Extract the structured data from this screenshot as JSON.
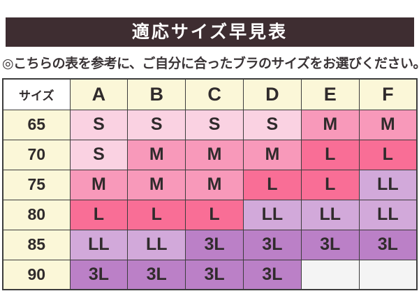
{
  "title": "適応サイズ早見表",
  "subtitle": "◎こちらの表を参考に、ご自分に合ったブラのサイズをお選びください。",
  "chart_data": {
    "type": "table",
    "title": "適応サイズ早見表",
    "corner_header": "サイズ",
    "columns": [
      "A",
      "B",
      "C",
      "D",
      "E",
      "F"
    ],
    "rows": [
      {
        "size": "65",
        "cells": [
          "S",
          "S",
          "S",
          "S",
          "M",
          "M"
        ]
      },
      {
        "size": "70",
        "cells": [
          "S",
          "M",
          "M",
          "M",
          "L",
          "L"
        ]
      },
      {
        "size": "75",
        "cells": [
          "M",
          "M",
          "M",
          "L",
          "L",
          "LL"
        ]
      },
      {
        "size": "80",
        "cells": [
          "L",
          "L",
          "L",
          "LL",
          "LL",
          "LL"
        ]
      },
      {
        "size": "85",
        "cells": [
          "LL",
          "LL",
          "3L",
          "3L",
          "3L",
          "3L"
        ]
      },
      {
        "size": "90",
        "cells": [
          "3L",
          "3L",
          "3L",
          "3L",
          "",
          ""
        ]
      }
    ]
  },
  "colors": {
    "title_bar_bg": "#3E2D31",
    "title_text": "#FFFFFF",
    "subtitle_text": "#3A3436",
    "header_bg": "#FBF7D8",
    "corner_bg": "#FFFFFF",
    "border": "#3C3C3C",
    "cell_text": "#302B2C",
    "cell_fill": {
      "S": "#FAD2E2",
      "M": "#F899BA",
      "L": "#F96E96",
      "LL": "#D2A9DA",
      "3L": "#BB80C7",
      "": "#F4F4F4"
    }
  }
}
